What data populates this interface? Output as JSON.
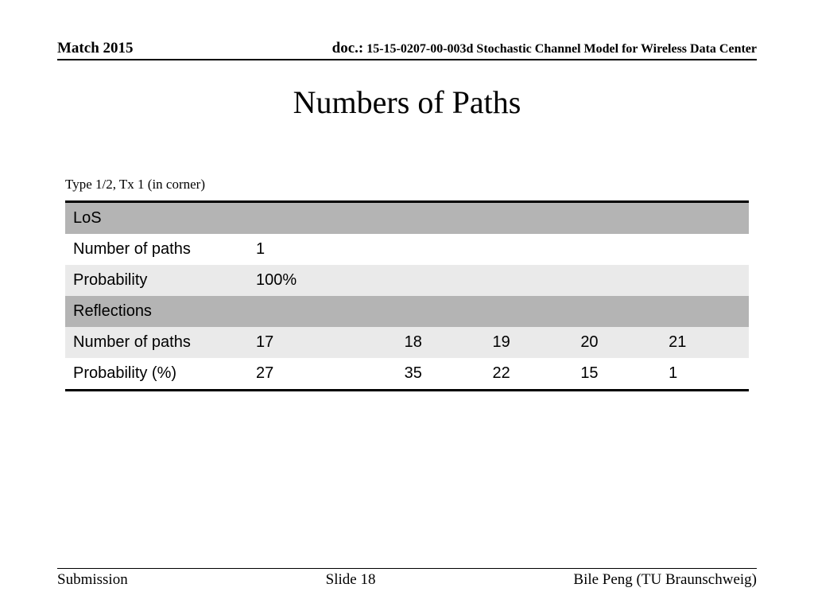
{
  "header": {
    "date": "Match 2015",
    "doc_label": "doc.:",
    "doc_text": "15-15-0207-00-003d Stochastic Channel Model for Wireless Data Center"
  },
  "title": "Numbers of Paths",
  "subtitle": "Type 1/2, Tx 1 (in corner)",
  "table": {
    "section1_header": "LoS",
    "section1_row1_label": "Number of paths",
    "section1_row1_values": [
      "1",
      "",
      "",
      "",
      ""
    ],
    "section1_row2_label": "Probability",
    "section1_row2_values": [
      "100%",
      "",
      "",
      "",
      ""
    ],
    "section2_header": "Reflections",
    "section2_row1_label": "Number of paths",
    "section2_row1_values": [
      "17",
      "18",
      "19",
      "20",
      "21"
    ],
    "section2_row2_label": "Probability (%)",
    "section2_row2_values": [
      "27",
      "35",
      "22",
      "15",
      "1"
    ],
    "colors": {
      "section_header_bg": "#b4b4b4",
      "light_row_bg": "#eaeaea",
      "white_row_bg": "#ffffff",
      "border_color": "#000000"
    },
    "fontsize": 20
  },
  "footer": {
    "left": "Submission",
    "center": "Slide 18",
    "right": "Bile Peng (TU Braunschweig)"
  }
}
